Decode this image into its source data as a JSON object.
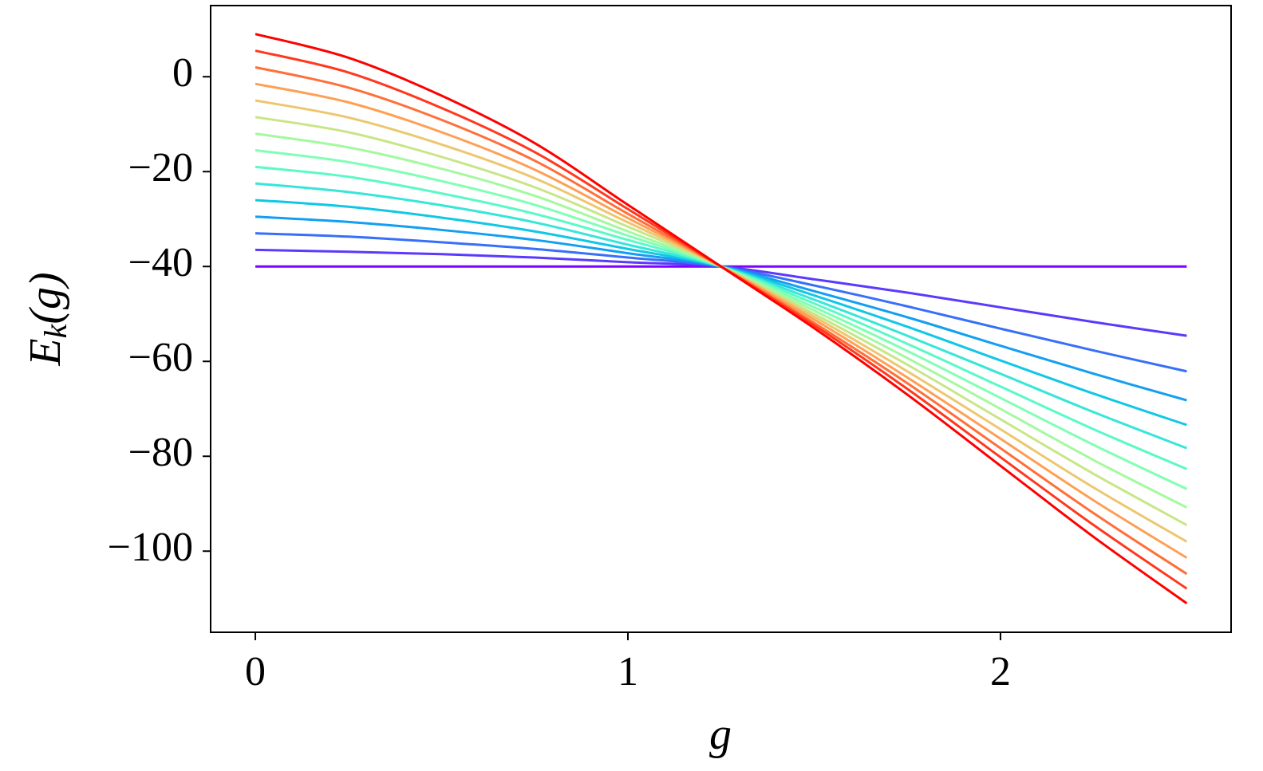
{
  "chart_data": {
    "type": "line",
    "x_label": "g",
    "y_label": {
      "main": "E",
      "sub": "k",
      "rest": "(g)"
    },
    "x": [
      0,
      0.25,
      0.5,
      0.75,
      1,
      1.25,
      1.5,
      1.75,
      2,
      2.25,
      2.5
    ],
    "xlim": [
      -0.12,
      2.619
    ],
    "ylim": [
      -117.1,
      15
    ],
    "xticks": [
      0,
      1,
      2
    ],
    "yticks": [
      0,
      {
        "value": -20,
        "label": "−20"
      },
      {
        "value": -40,
        "label": "−40"
      },
      {
        "value": -60,
        "label": "−60"
      },
      {
        "value": -80,
        "label": "−80"
      },
      {
        "value": -100,
        "label": "−100"
      }
    ],
    "grid": false,
    "series": [
      {
        "color": "#8000ff",
        "values": [
          -40,
          -40,
          -40,
          -40,
          -40,
          -40,
          -40,
          -40,
          -40,
          -40,
          -40
        ]
      },
      {
        "color": "#5b39fd",
        "values": [
          -36.5,
          -36.9,
          -37.4,
          -38.1,
          -39.1,
          -40,
          -42.7,
          -45.5,
          -48.6,
          -51.7,
          -54.6
        ]
      },
      {
        "color": "#376ff9",
        "values": [
          -33.0,
          -33.7,
          -34.9,
          -36.3,
          -38.1,
          -40,
          -44.0,
          -48.4,
          -53.1,
          -57.7,
          -62.1
        ]
      },
      {
        "color": "#129ff1",
        "values": [
          -29.5,
          -30.6,
          -32.3,
          -34.4,
          -37.2,
          -40,
          -45.2,
          -50.7,
          -56.7,
          -62.6,
          -68.2
        ]
      },
      {
        "color": "#12c7e6",
        "values": [
          -26.0,
          -27.4,
          -29.7,
          -32.6,
          -36.3,
          -40,
          -46.1,
          -52.7,
          -59.8,
          -66.8,
          -73.4
        ]
      },
      {
        "color": "#37e6d8",
        "values": [
          -22.5,
          -24.3,
          -27.1,
          -30.7,
          -35.4,
          -40,
          -47.0,
          -54.6,
          -62.6,
          -70.7,
          -78.3
        ]
      },
      {
        "color": "#5bf9c7",
        "values": [
          -19.0,
          -21.1,
          -24.6,
          -28.9,
          -34.4,
          -40,
          -47.8,
          -56.3,
          -65.3,
          -74.3,
          -82.7
        ]
      },
      {
        "color": "#80ffb4",
        "values": [
          -15.5,
          -18.0,
          -22.0,
          -27.0,
          -33.5,
          -40,
          -48.6,
          -57.8,
          -67.7,
          -77.6,
          -86.9
        ]
      },
      {
        "color": "#a4f99f",
        "values": [
          -12.0,
          -14.9,
          -19.4,
          -25.1,
          -32.6,
          -40,
          -49.3,
          -59.3,
          -70.0,
          -80.8,
          -90.8
        ]
      },
      {
        "color": "#c8e688",
        "values": [
          -8.5,
          -11.7,
          -16.9,
          -23.3,
          -31.6,
          -40,
          -50.0,
          -60.7,
          -72.2,
          -83.7,
          -94.5
        ]
      },
      {
        "color": "#edc76f",
        "values": [
          -5.0,
          -8.6,
          -14.3,
          -21.4,
          -30.7,
          -40,
          -50.6,
          -62.1,
          -74.3,
          -86.6,
          -98.0
        ]
      },
      {
        "color": "#ff9f54",
        "values": [
          -1.5,
          -5.4,
          -11.7,
          -19.6,
          -29.8,
          -40,
          -51.2,
          -63.4,
          -76.3,
          -89.3,
          -101.4
        ]
      },
      {
        "color": "#ff6f39",
        "values": [
          2.0,
          -2.3,
          -9.1,
          -17.7,
          -28.9,
          -40,
          -51.9,
          -64.6,
          -78.3,
          -92.0,
          -104.8
        ]
      },
      {
        "color": "#ff391d",
        "values": [
          5.5,
          0.9,
          -6.6,
          -15.9,
          -27.9,
          -40,
          -52.4,
          -65.8,
          -80.2,
          -94.5,
          -107.9
        ]
      },
      {
        "color": "#ff0000",
        "values": [
          9,
          4,
          -4,
          -14,
          -27,
          -40,
          -53,
          -67,
          -82,
          -97,
          -111
        ]
      }
    ]
  }
}
